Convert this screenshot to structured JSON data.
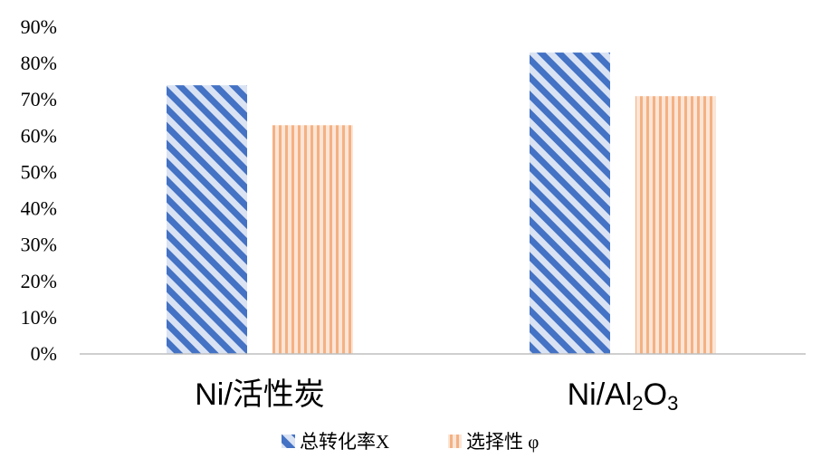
{
  "chart_data": {
    "type": "bar",
    "categories": [
      "Ni/活性炭",
      "Ni/Al2O3"
    ],
    "category_labels": [
      {
        "parts": [
          {
            "text": "Ni/活性炭",
            "sub": false
          }
        ]
      },
      {
        "parts": [
          {
            "text": "Ni/Al",
            "sub": false
          },
          {
            "text": "2",
            "sub": true
          },
          {
            "text": "O",
            "sub": false
          },
          {
            "text": "3",
            "sub": true
          }
        ]
      }
    ],
    "series": [
      {
        "name": "总转化率X",
        "values": [
          74,
          83
        ],
        "color": "#4472c4",
        "fill_color": "#dae3f3",
        "pattern": "diagonal-stripes"
      },
      {
        "name": "选择性 φ",
        "values": [
          63,
          71
        ],
        "color": "#f4b183",
        "fill_color": "#fbe5d6",
        "pattern": "vertical-stripes"
      }
    ],
    "yticks": [
      "0%",
      "10%",
      "20%",
      "30%",
      "40%",
      "50%",
      "60%",
      "70%",
      "80%",
      "90%"
    ],
    "ylim": [
      0,
      90
    ],
    "grid": false,
    "legend": "bottom",
    "title": "",
    "xlabel": "",
    "ylabel": ""
  }
}
